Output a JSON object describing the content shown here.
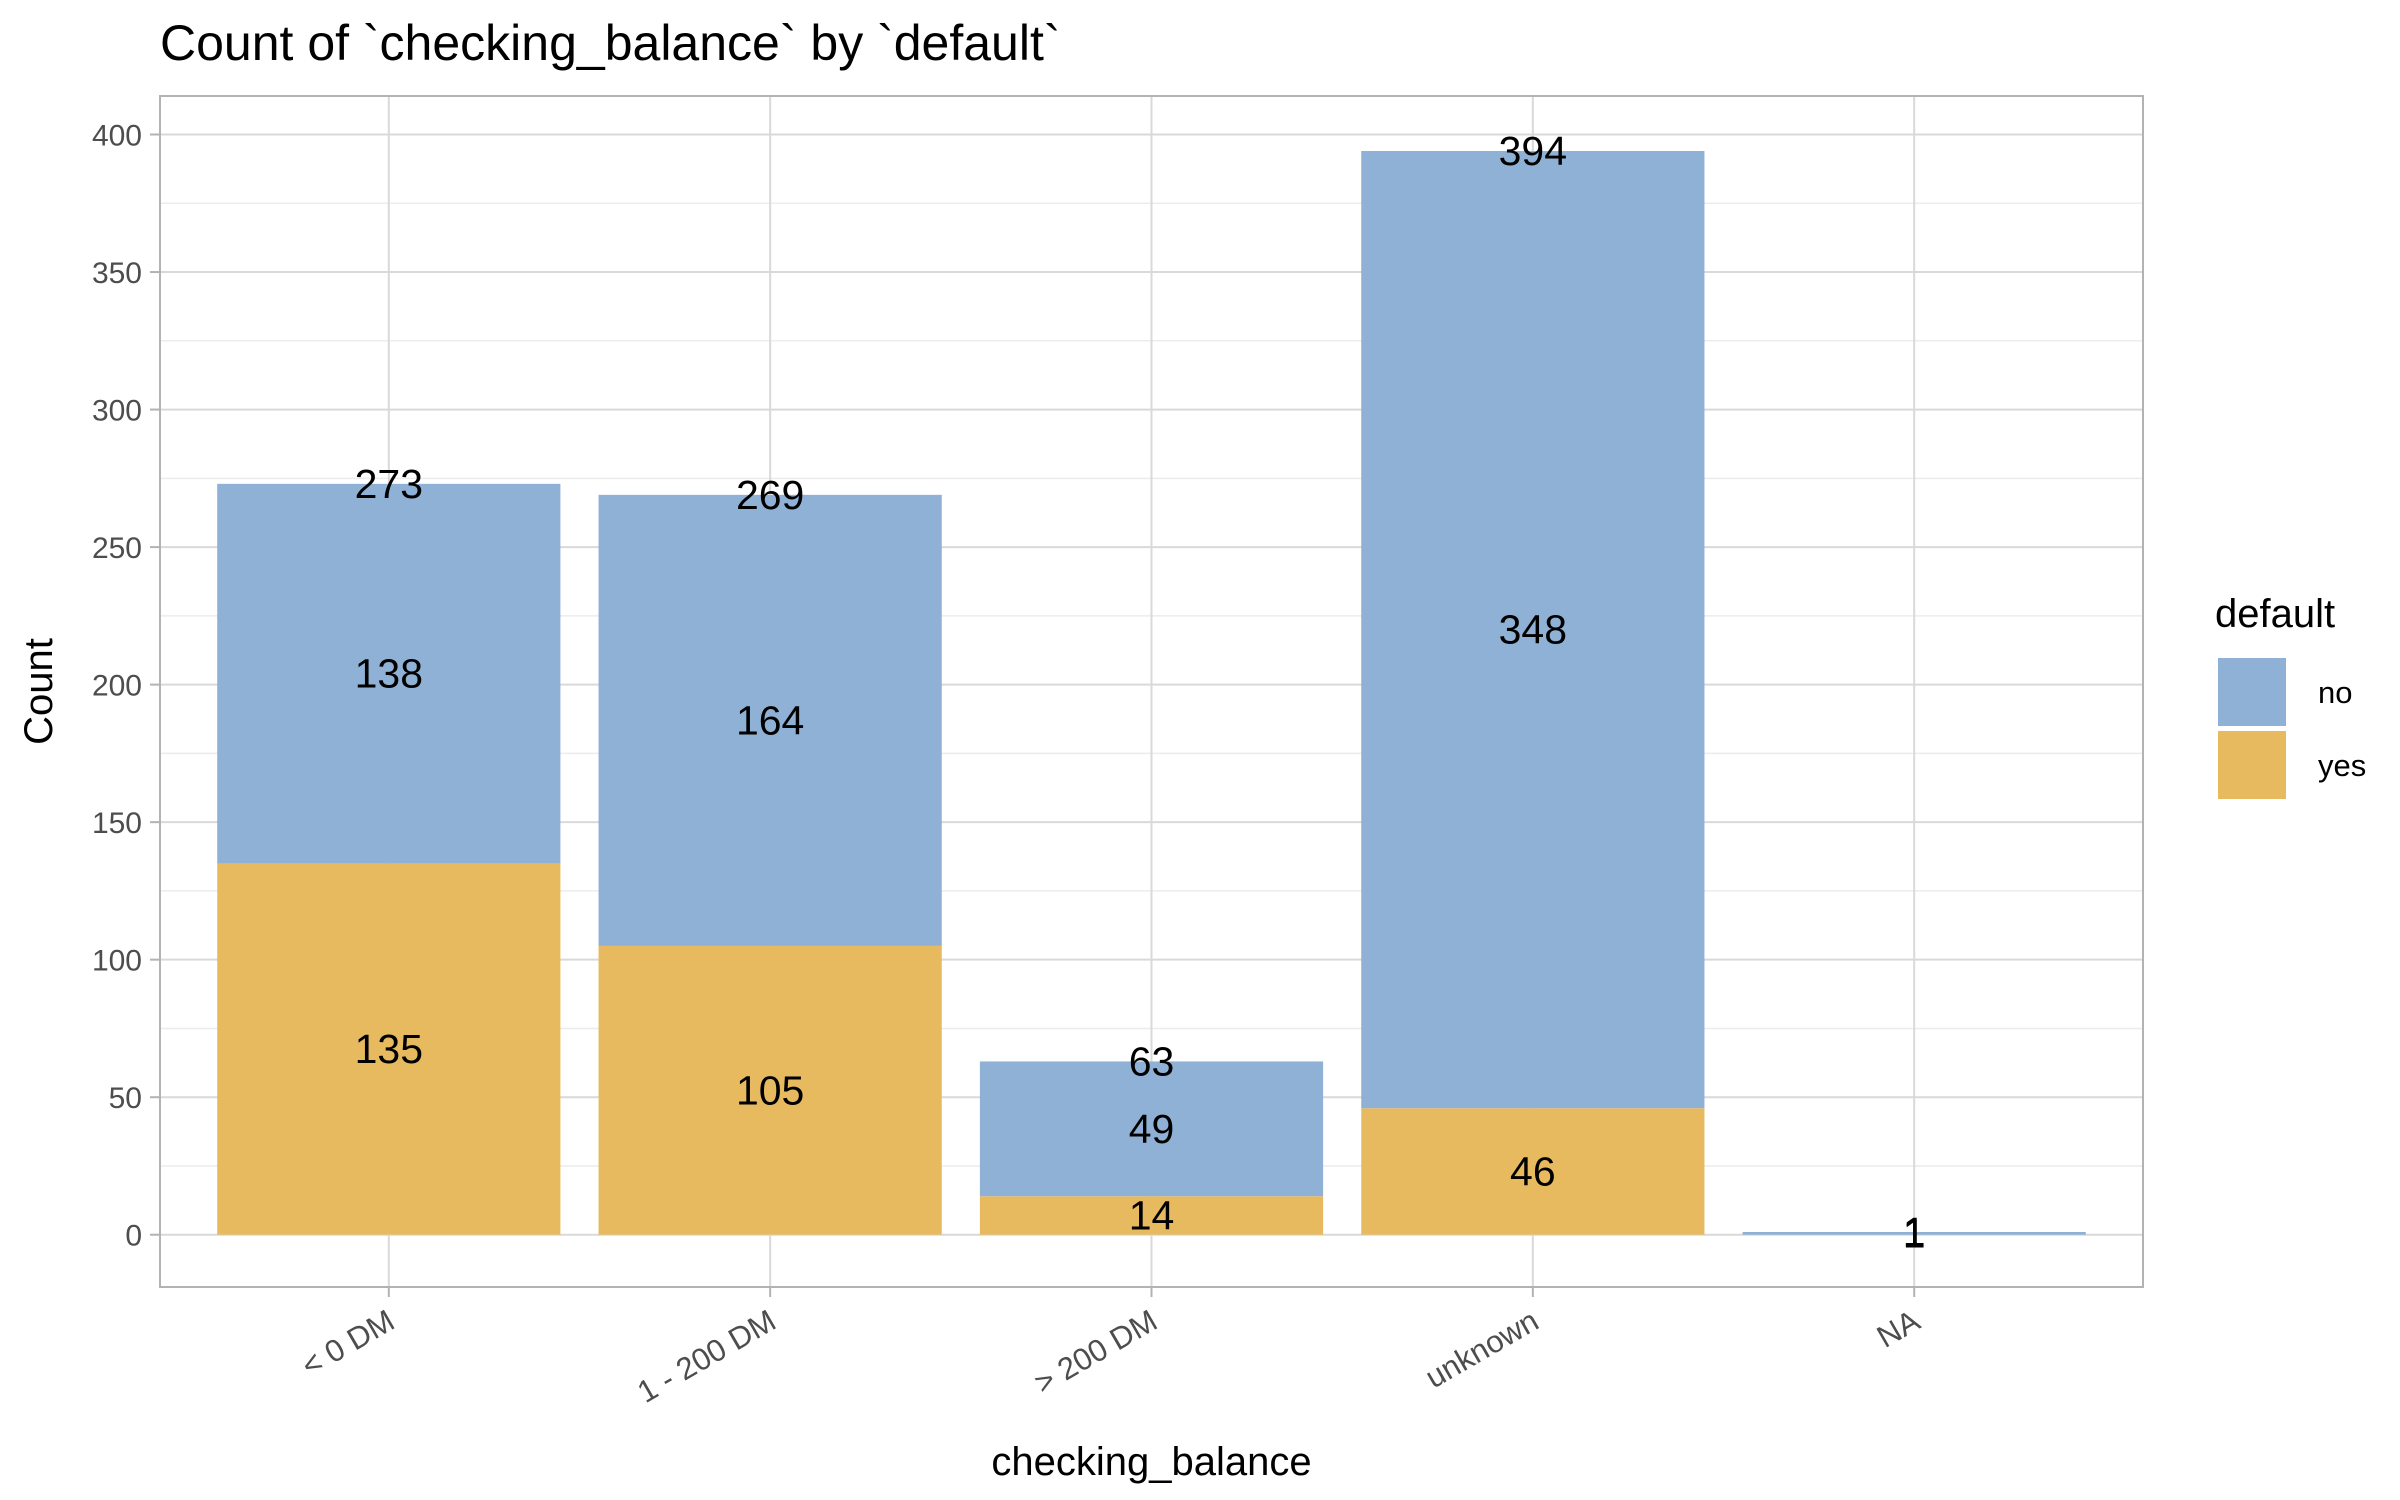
{
  "chart_data": {
    "type": "bar",
    "stacked": true,
    "title": "Count of `checking_balance` by `default`",
    "xlabel": "checking_balance",
    "ylabel": "Count",
    "categories": [
      "< 0 DM",
      "1 - 200 DM",
      "> 200 DM",
      "unknown",
      "NA"
    ],
    "series": [
      {
        "name": "no",
        "values": [
          138,
          164,
          49,
          348,
          1
        ],
        "color": "#8EB1D5"
      },
      {
        "name": "yes",
        "values": [
          135,
          105,
          14,
          46,
          0
        ],
        "color": "#E8BA60"
      }
    ],
    "segment_labels": [
      {
        "category": "< 0 DM",
        "series": "no",
        "label": "138"
      },
      {
        "category": "< 0 DM",
        "series": "yes",
        "label": "135"
      },
      {
        "category": "1 - 200 DM",
        "series": "no",
        "label": "164"
      },
      {
        "category": "1 - 200 DM",
        "series": "yes",
        "label": "105"
      },
      {
        "category": "> 200 DM",
        "series": "no",
        "label": "49"
      },
      {
        "category": "> 200 DM",
        "series": "yes",
        "label": "14"
      },
      {
        "category": "unknown",
        "series": "no",
        "label": "348"
      },
      {
        "category": "unknown",
        "series": "yes",
        "label": "46"
      },
      {
        "category": "NA",
        "series": "no",
        "label": "1"
      }
    ],
    "totals": [
      "273",
      "269",
      "63",
      "394",
      "1"
    ],
    "ylim": [
      -19,
      414
    ],
    "yticks": [
      0,
      50,
      100,
      150,
      200,
      250,
      300,
      350,
      400
    ],
    "grid": true,
    "legend": {
      "title": "default",
      "position": "right"
    }
  }
}
